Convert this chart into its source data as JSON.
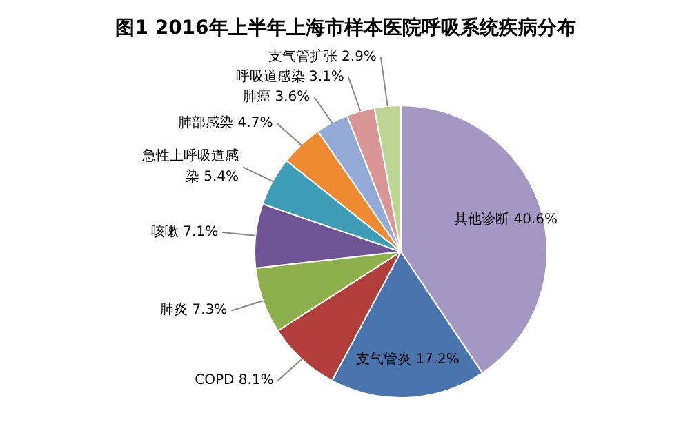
{
  "chart_data": {
    "type": "pie",
    "title": "图1 2016年上半年上海市样本医院呼吸系统疾病分布",
    "categories": [
      "其他诊断",
      "支气管炎",
      "COPD",
      "肺炎",
      "咳嗽",
      "急性上呼吸道感染",
      "肺部感染",
      "肺癌",
      "呼吸道感染",
      "支气管扩张"
    ],
    "values": [
      40.6,
      17.2,
      8.1,
      7.3,
      7.1,
      5.4,
      4.7,
      3.6,
      3.1,
      2.9
    ],
    "value_labels": [
      "40.6%",
      "17.2%",
      "8.1%",
      "7.3%",
      "7.1%",
      "5.4%",
      "4.7%",
      "3.6%",
      "3.1%",
      "2.9%"
    ],
    "colors": [
      "#a497c4",
      "#4a74ad",
      "#b23e3b",
      "#8daf4c",
      "#6e5495",
      "#3d9cb6",
      "#ee8a30",
      "#93aad6",
      "#d99694",
      "#bdd592"
    ]
  }
}
